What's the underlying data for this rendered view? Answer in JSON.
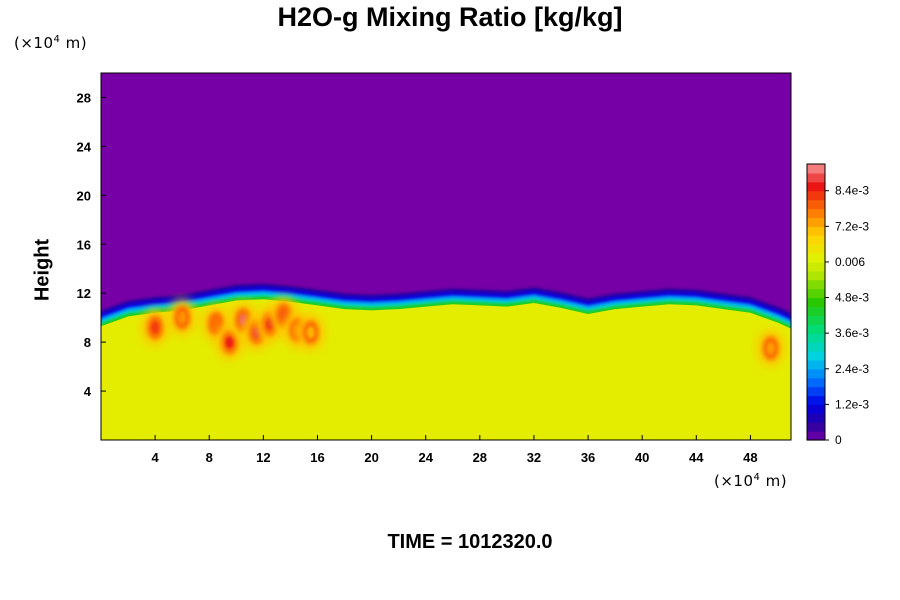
{
  "chart_data": {
    "type": "heatmap",
    "title": "H2O-g Mixing Ratio [kg/kg]",
    "ylabel": "Height",
    "xlabel": "",
    "x_unit": {
      "prefix": "(×10",
      "exp": "4",
      "suffix": " m)"
    },
    "y_unit": {
      "prefix": "(×10",
      "exp": "4",
      "suffix": " m)"
    },
    "xlim": [
      0,
      51
    ],
    "ylim": [
      0,
      30
    ],
    "x_ticks": [
      4,
      8,
      12,
      16,
      20,
      24,
      28,
      32,
      36,
      40,
      44,
      48
    ],
    "y_ticks": [
      4,
      8,
      12,
      16,
      20,
      24,
      28
    ],
    "colorbar": {
      "min": 0,
      "max": 0.0093,
      "tick_labels": [
        {
          "value": 0,
          "label": "0"
        },
        {
          "value": 0.0012,
          "label": "1.2e-3"
        },
        {
          "value": 0.0024,
          "label": "2.4e-3"
        },
        {
          "value": 0.0036,
          "label": "3.6e-3"
        },
        {
          "value": 0.0048,
          "label": "4.8e-3"
        },
        {
          "value": 0.006,
          "label": "0.006"
        },
        {
          "value": 0.0072,
          "label": "7.2e-3"
        },
        {
          "value": 0.0084,
          "label": "8.4e-3"
        }
      ]
    },
    "field": {
      "dry_layer_value": 0,
      "moist_layer_value": 0.0062,
      "inversion_height_profile": [
        {
          "x": 0,
          "y": 10.2
        },
        {
          "x": 2,
          "y": 11.0
        },
        {
          "x": 4,
          "y": 11.3
        },
        {
          "x": 6,
          "y": 11.5
        },
        {
          "x": 8,
          "y": 11.9
        },
        {
          "x": 10,
          "y": 12.3
        },
        {
          "x": 12,
          "y": 12.4
        },
        {
          "x": 14,
          "y": 12.2
        },
        {
          "x": 16,
          "y": 11.9
        },
        {
          "x": 18,
          "y": 11.6
        },
        {
          "x": 20,
          "y": 11.5
        },
        {
          "x": 22,
          "y": 11.6
        },
        {
          "x": 24,
          "y": 11.8
        },
        {
          "x": 26,
          "y": 12.0
        },
        {
          "x": 28,
          "y": 11.9
        },
        {
          "x": 30,
          "y": 11.8
        },
        {
          "x": 32,
          "y": 12.1
        },
        {
          "x": 34,
          "y": 11.7
        },
        {
          "x": 36,
          "y": 11.2
        },
        {
          "x": 38,
          "y": 11.6
        },
        {
          "x": 40,
          "y": 11.8
        },
        {
          "x": 42,
          "y": 12.0
        },
        {
          "x": 44,
          "y": 11.9
        },
        {
          "x": 46,
          "y": 11.6
        },
        {
          "x": 48,
          "y": 11.3
        },
        {
          "x": 50,
          "y": 10.5
        },
        {
          "x": 51,
          "y": 10.0
        }
      ],
      "moist_plumes": [
        {
          "x": 4.0,
          "y": 9.2,
          "value": 0.0082
        },
        {
          "x": 6.0,
          "y": 10.0,
          "value": 0.0075
        },
        {
          "x": 8.5,
          "y": 9.5,
          "value": 0.0078
        },
        {
          "x": 9.5,
          "y": 8.0,
          "value": 0.0085
        },
        {
          "x": 10.5,
          "y": 9.8,
          "value": 0.009
        },
        {
          "x": 11.5,
          "y": 8.8,
          "value": 0.0088
        },
        {
          "x": 12.5,
          "y": 9.5,
          "value": 0.0086
        },
        {
          "x": 13.5,
          "y": 10.2,
          "value": 0.008
        },
        {
          "x": 14.5,
          "y": 9.0,
          "value": 0.0076
        },
        {
          "x": 15.5,
          "y": 8.8,
          "value": 0.0072
        },
        {
          "x": 49.5,
          "y": 7.5,
          "value": 0.0074
        }
      ]
    }
  },
  "time_label": "TIME = 1012320.0"
}
